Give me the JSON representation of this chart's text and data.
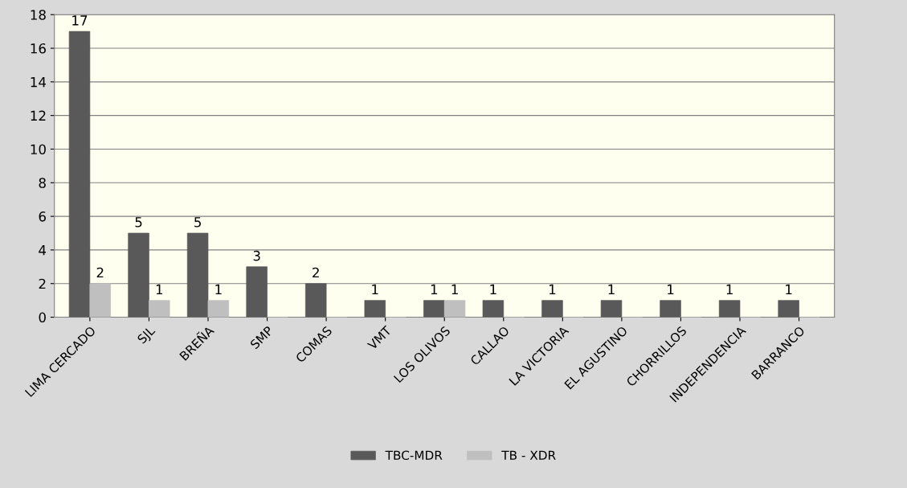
{
  "chart_data": {
    "type": "bar",
    "categories": [
      "LIMA CERCADO",
      "SJL",
      "BREÑA",
      "SMP",
      "COMAS",
      "VMT",
      "LOS OLIVOS",
      "CALLAO",
      "LA VICTORIA",
      "EL AGUSTINO",
      "CHORRILLOS",
      "INDEPENDENCIA",
      "BARRANCO"
    ],
    "series": [
      {
        "name": "TBC-MDR",
        "color": "#595959",
        "values": [
          17,
          5,
          5,
          3,
          2,
          1,
          1,
          1,
          1,
          1,
          1,
          1,
          1
        ],
        "value_labels": [
          "17",
          "5",
          "5",
          "3",
          "2",
          "1",
          "1",
          "1",
          "1",
          "1",
          "1",
          "1",
          "1"
        ]
      },
      {
        "name": "TB - XDR",
        "color": "#bfbfbf",
        "values": [
          2,
          1,
          1,
          0,
          0,
          0,
          1,
          0,
          0,
          0,
          0,
          0,
          0
        ],
        "value_labels": [
          "2",
          "1",
          "1",
          null,
          null,
          null,
          "1",
          null,
          null,
          null,
          null,
          null,
          null
        ]
      }
    ],
    "ylim": [
      0,
      18
    ],
    "yticks": [
      0,
      2,
      4,
      6,
      8,
      10,
      12,
      14,
      16,
      18
    ],
    "grid": "y",
    "legend": "bottom"
  }
}
